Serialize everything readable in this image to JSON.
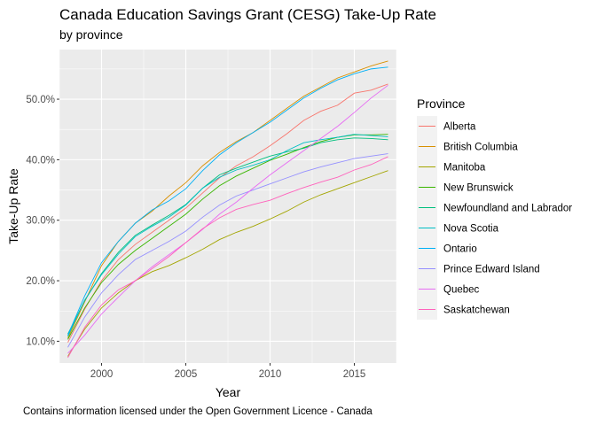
{
  "chart_data": {
    "type": "line",
    "title": "Canada Education Savings Grant (CESG) Take-Up Rate",
    "subtitle": "by province",
    "xlabel": "Year",
    "ylabel": "Take-Up Rate",
    "caption": "Contains information licensed under the Open Government Licence - Canada",
    "legend_title": "Province",
    "legend_position": "right",
    "grid": true,
    "xlim": [
      1997.5,
      2017.5
    ],
    "ylim": [
      6.4,
      58.2
    ],
    "x_ticks": [
      2000,
      2005,
      2010,
      2015
    ],
    "x_tick_labels": [
      "2000",
      "2005",
      "2010",
      "2015"
    ],
    "y_ticks": [
      10,
      20,
      30,
      40,
      50
    ],
    "y_tick_labels": [
      "10.0%",
      "20.0%",
      "30.0%",
      "40.0%",
      "50.0%"
    ],
    "x": [
      1998,
      1999,
      2000,
      2001,
      2002,
      2003,
      2004,
      2005,
      2006,
      2007,
      2008,
      2009,
      2010,
      2011,
      2012,
      2013,
      2014,
      2015,
      2016,
      2017
    ],
    "series": [
      {
        "name": "Alberta",
        "color": "#F8766D",
        "values": [
          9.8,
          15.3,
          20.0,
          23.5,
          26.0,
          28.0,
          30.0,
          32.0,
          34.5,
          37.0,
          39.0,
          40.5,
          42.3,
          44.3,
          46.5,
          48.0,
          49.0,
          51.0,
          51.5,
          52.5
        ]
      },
      {
        "name": "British Columbia",
        "color": "#D89000",
        "values": [
          10.5,
          16.5,
          22.5,
          26.5,
          29.5,
          31.5,
          34.0,
          36.2,
          39.0,
          41.2,
          43.0,
          44.5,
          46.5,
          48.5,
          50.5,
          52.0,
          53.5,
          54.5,
          55.5,
          56.3
        ]
      },
      {
        "name": "Manitoba",
        "color": "#A3A500",
        "values": [
          7.5,
          12.0,
          15.5,
          18.0,
          20.0,
          21.5,
          22.5,
          23.8,
          25.2,
          26.8,
          28.0,
          29.0,
          30.2,
          31.5,
          33.0,
          34.2,
          35.2,
          36.2,
          37.2,
          38.2
        ]
      },
      {
        "name": "New Brunswick",
        "color": "#39B600",
        "values": [
          10.3,
          15.5,
          19.7,
          22.7,
          25.0,
          27.0,
          29.0,
          31.0,
          33.5,
          35.7,
          37.3,
          38.6,
          39.9,
          40.9,
          42.0,
          43.0,
          43.7,
          44.1,
          44.1,
          44.2
        ]
      },
      {
        "name": "Newfoundland and Labrador",
        "color": "#00BF7D",
        "values": [
          11.2,
          16.7,
          21.2,
          24.7,
          27.5,
          29.2,
          30.8,
          32.6,
          35.3,
          37.5,
          38.6,
          39.6,
          40.6,
          41.3,
          41.9,
          42.8,
          43.3,
          43.6,
          43.5,
          43.3
        ]
      },
      {
        "name": "Nova Scotia",
        "color": "#00BFC4",
        "values": [
          10.8,
          16.8,
          21.0,
          24.4,
          27.3,
          29.0,
          30.5,
          32.5,
          35.3,
          37.1,
          38.3,
          39.1,
          40.0,
          41.5,
          42.8,
          43.3,
          43.7,
          44.2,
          44.0,
          43.8
        ]
      },
      {
        "name": "Ontario",
        "color": "#00B0F6",
        "values": [
          11.0,
          17.5,
          23.0,
          26.5,
          29.5,
          31.7,
          33.2,
          35.2,
          38.2,
          40.8,
          42.8,
          44.5,
          46.2,
          48.2,
          50.2,
          51.8,
          53.2,
          54.2,
          55.0,
          55.3
        ]
      },
      {
        "name": "Prince Edward Island",
        "color": "#9590FF",
        "values": [
          9.0,
          14.0,
          18.0,
          21.0,
          23.5,
          25.0,
          26.5,
          28.2,
          30.5,
          32.5,
          34.0,
          35.0,
          36.0,
          37.0,
          38.0,
          38.8,
          39.5,
          40.2,
          40.6,
          41.0
        ]
      },
      {
        "name": "Quebec",
        "color": "#E76BF3",
        "values": [
          8.0,
          11.0,
          14.5,
          17.3,
          20.0,
          22.3,
          24.3,
          26.3,
          28.5,
          31.0,
          33.0,
          35.3,
          37.5,
          39.5,
          41.5,
          43.5,
          45.5,
          47.8,
          50.2,
          52.3
        ]
      },
      {
        "name": "Saskatchewan",
        "color": "#FF62BC",
        "values": [
          7.3,
          12.3,
          16.0,
          18.5,
          20.0,
          22.0,
          24.0,
          26.3,
          28.6,
          30.4,
          31.8,
          32.6,
          33.3,
          34.4,
          35.4,
          36.3,
          37.1,
          38.3,
          39.2,
          40.5
        ]
      }
    ]
  }
}
